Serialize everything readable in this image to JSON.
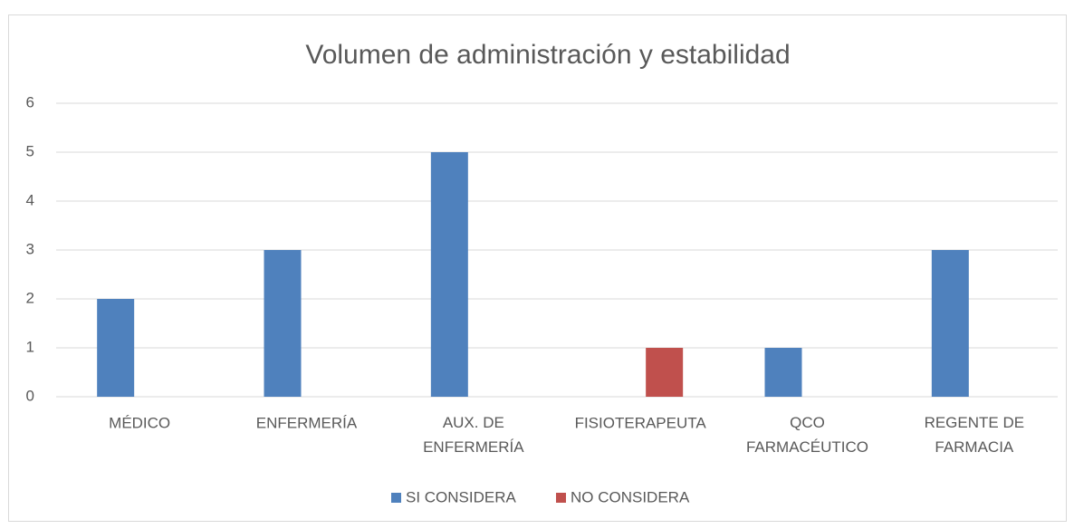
{
  "chart_data": {
    "type": "bar",
    "title": "Volumen de administración y estabilidad",
    "categories": [
      "MÉDICO",
      "ENFERMERÍA",
      "AUX. DE ENFERMERÍA",
      "FISIOTERAPEUTA",
      "QCO FARMACÉUTICO",
      "REGENTE DE FARMACIA"
    ],
    "series": [
      {
        "name": "SI CONSIDERA",
        "color": "#4f81bd",
        "values": [
          2,
          3,
          5,
          0,
          1,
          3
        ]
      },
      {
        "name": "NO CONSIDERA",
        "color": "#c0504d",
        "values": [
          0,
          0,
          0,
          1,
          0,
          0
        ]
      }
    ],
    "ylim": [
      0,
      6
    ],
    "yticks": [
      0,
      1,
      2,
      3,
      4,
      5,
      6
    ],
    "grid": true,
    "legend": "bottom"
  }
}
